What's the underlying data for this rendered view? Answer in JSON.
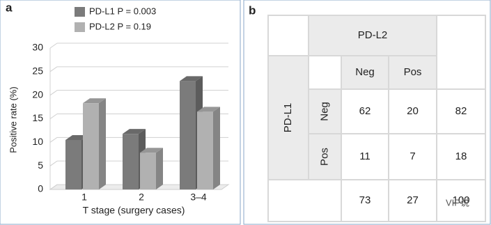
{
  "panel_labels": [
    "a",
    "b"
  ],
  "chart_data": {
    "type": "bar3d",
    "y_label": "Positive rate (%)",
    "x_label": "T stage (surgery cases)",
    "categories": [
      "1",
      "2",
      "3–4"
    ],
    "series": [
      {
        "name": "PD-L1 P = 0.003",
        "color": "#7b7b7b",
        "values": [
          10.5,
          11.8,
          23
        ]
      },
      {
        "name": "PD-L2 P = 0.19",
        "color": "#b1b1b1",
        "values": [
          18.3,
          7.8,
          16.5
        ]
      }
    ],
    "ylim": [
      0,
      30
    ],
    "yticks": [
      0,
      5,
      10,
      15,
      20,
      25,
      30
    ],
    "grid": true
  },
  "table": {
    "header": "PD-L2",
    "row_header": "PD-L1",
    "columns": [
      "Neg",
      "Pos"
    ],
    "rows": [
      {
        "label": "Neg",
        "values": [
          62,
          20
        ],
        "total": 82
      },
      {
        "label": "Pos",
        "values": [
          11,
          7
        ],
        "total": 18
      }
    ],
    "totals": [
      73,
      27,
      100
    ]
  },
  "watermark": "VIP说"
}
